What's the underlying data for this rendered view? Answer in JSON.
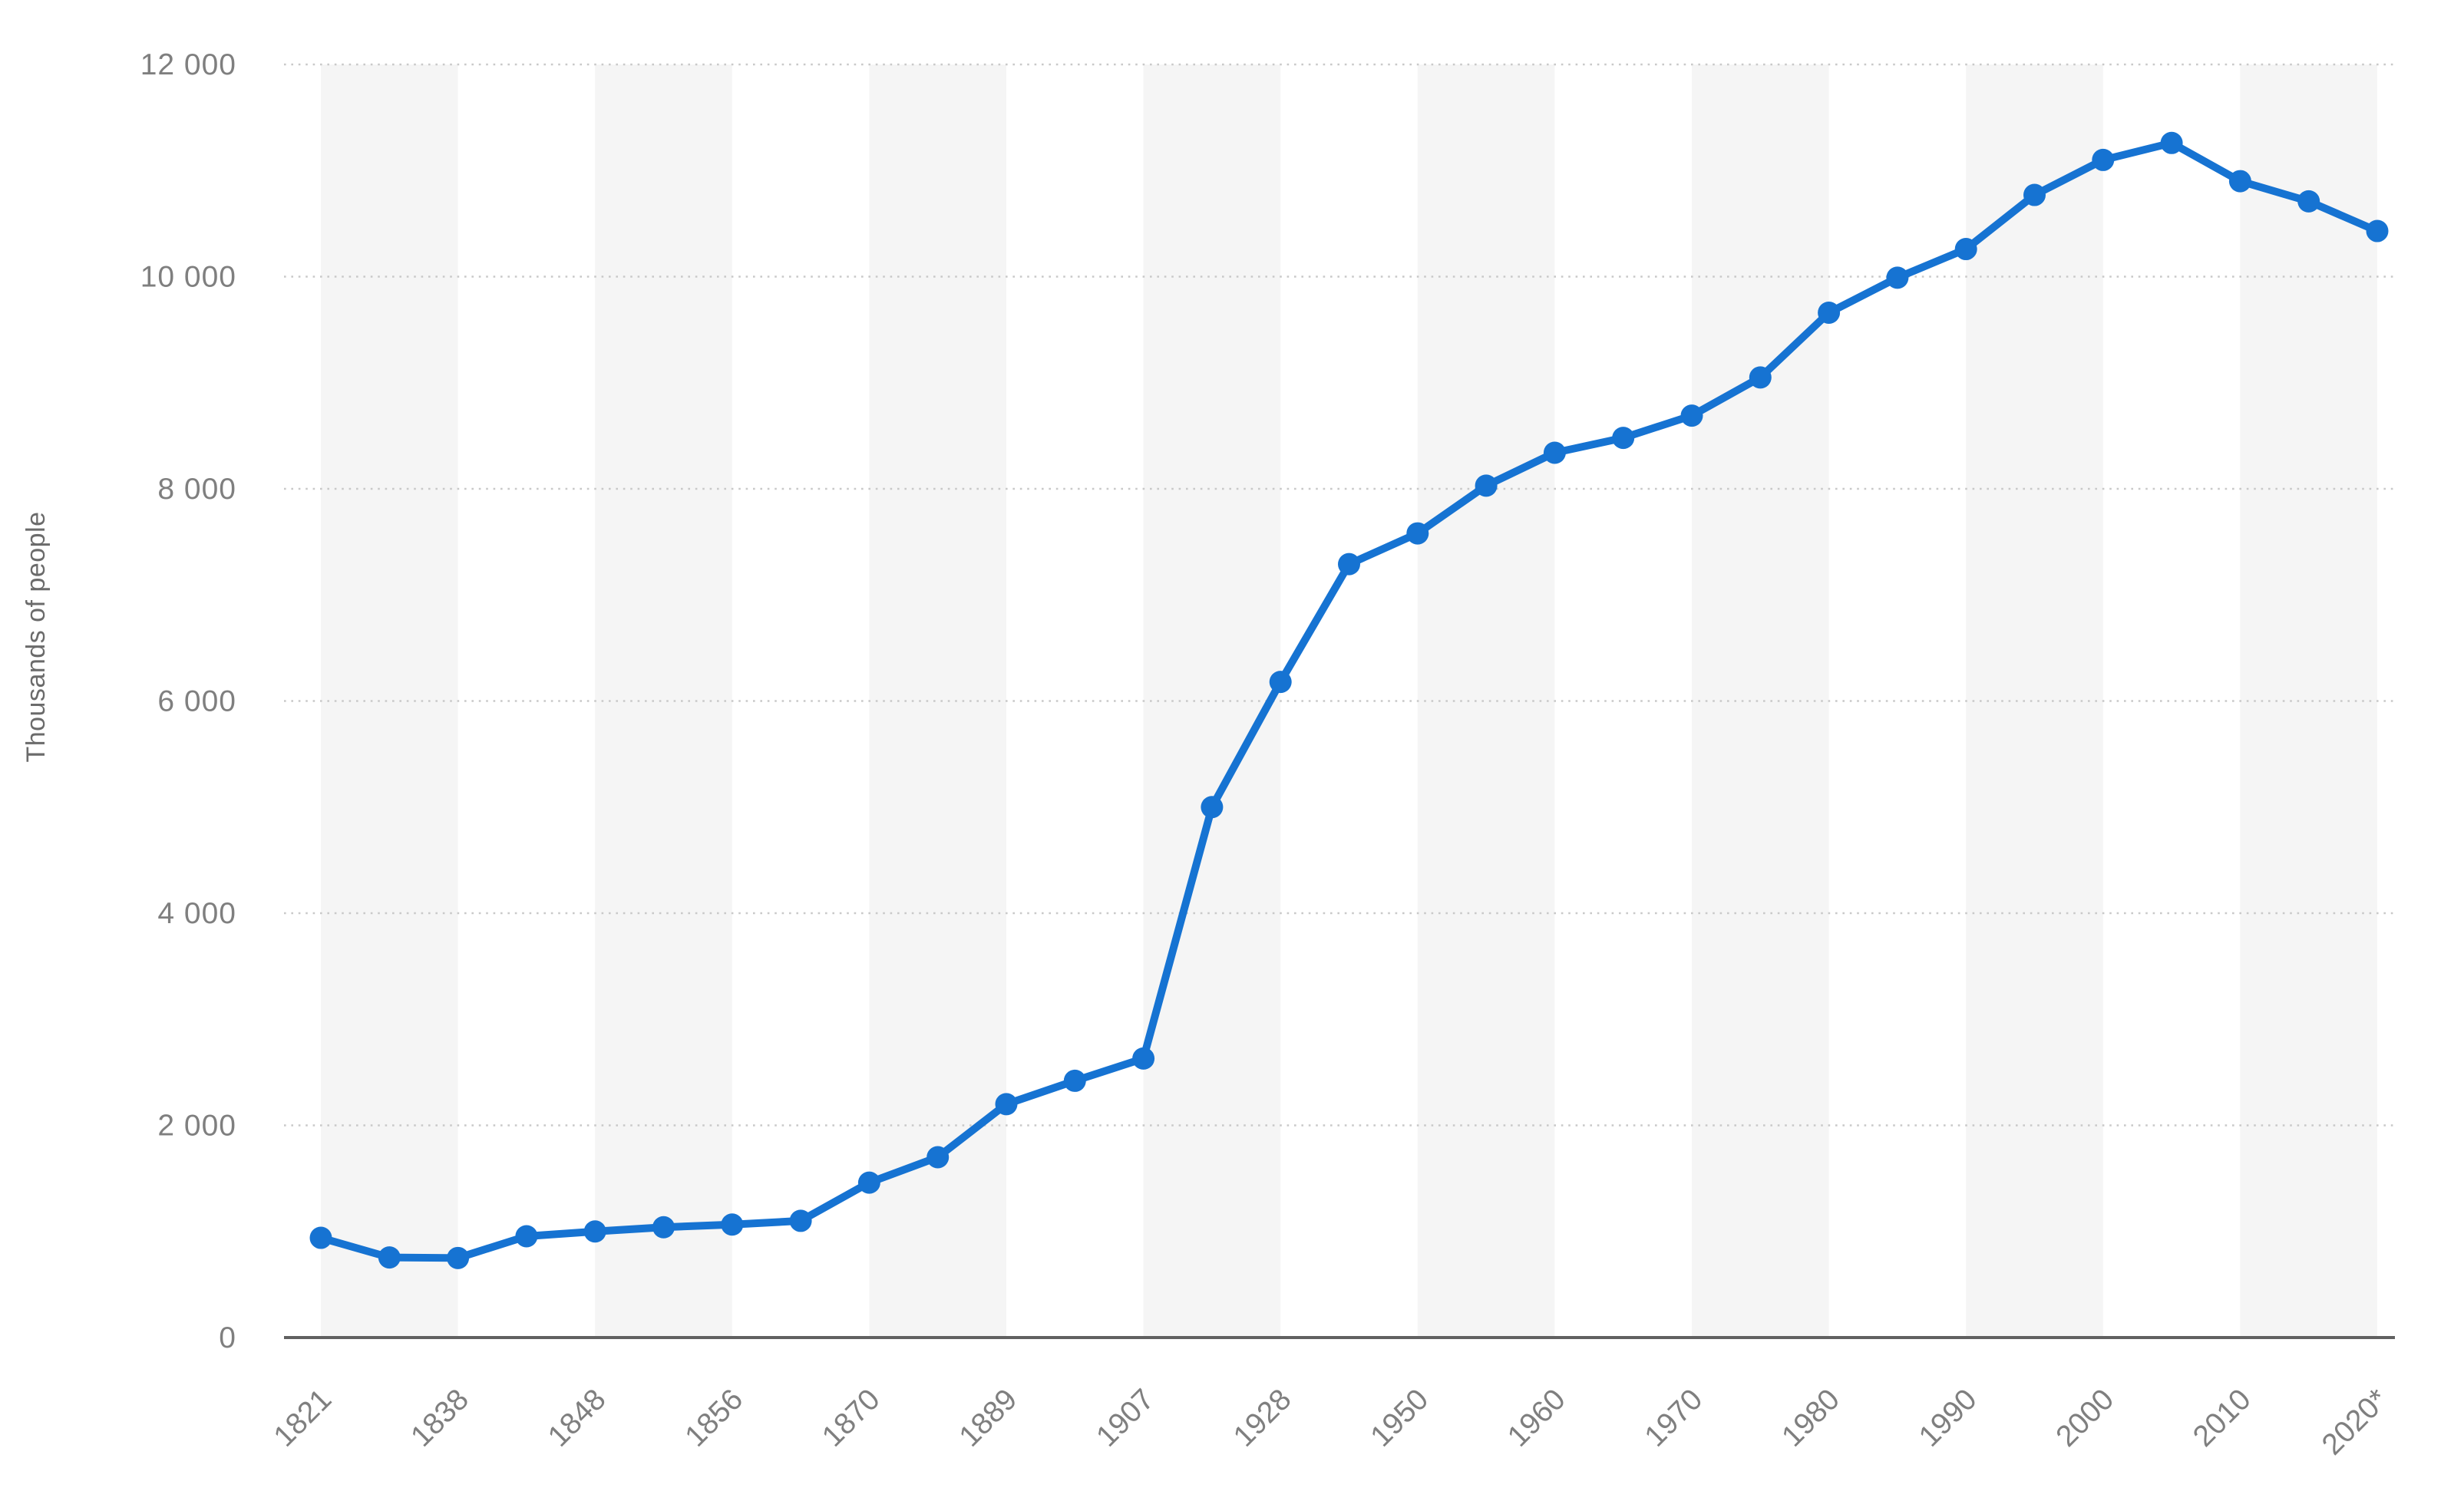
{
  "chart": {
    "y_axis_title": "Thousands of people"
  },
  "colors": {
    "series_blue": "#1673d2",
    "background_band": "#f5f5f5",
    "gridline": "#c9c9c9",
    "axis_line": "#616161",
    "tick_text": "#7f7f7f",
    "axis_title_text": "#6b6b6b"
  },
  "chart_data": {
    "type": "line",
    "title": "",
    "xlabel": "",
    "ylabel": "Thousands of people",
    "ylim": [
      0,
      12000
    ],
    "grid": "horizontal dotted gridlines, alternating vertical light-gray background bands",
    "legend": "none",
    "marker": "filled circle on every point",
    "y_ticks": [
      {
        "value": 0,
        "label": "0"
      },
      {
        "value": 2000,
        "label": "2 000"
      },
      {
        "value": 4000,
        "label": "4 000"
      },
      {
        "value": 6000,
        "label": "6 000"
      },
      {
        "value": 8000,
        "label": "8 000"
      },
      {
        "value": 10000,
        "label": "10 000"
      },
      {
        "value": 12000,
        "label": "12 000"
      }
    ],
    "x_labels": [
      "1821",
      "",
      "1838",
      "",
      "1848",
      "",
      "1856",
      "",
      "1870",
      "",
      "1889",
      "",
      "1907",
      "",
      "1928",
      "",
      "1950",
      "",
      "1960",
      "",
      "1970",
      "",
      "1980",
      "",
      "1990",
      "",
      "2000",
      "",
      "2010",
      "",
      "2020*"
    ],
    "series": [
      {
        "name": "Thousands of people",
        "color": "#1673d2",
        "values": [
          940,
          755,
          750,
          955,
          1000,
          1040,
          1065,
          1100,
          1460,
          1700,
          2200,
          2420,
          2630,
          5000,
          6180,
          7290,
          7580,
          8030,
          8340,
          8480,
          8690,
          9050,
          9660,
          9990,
          10260,
          10770,
          11100,
          11260,
          10900,
          10710,
          10430
        ]
      }
    ]
  }
}
